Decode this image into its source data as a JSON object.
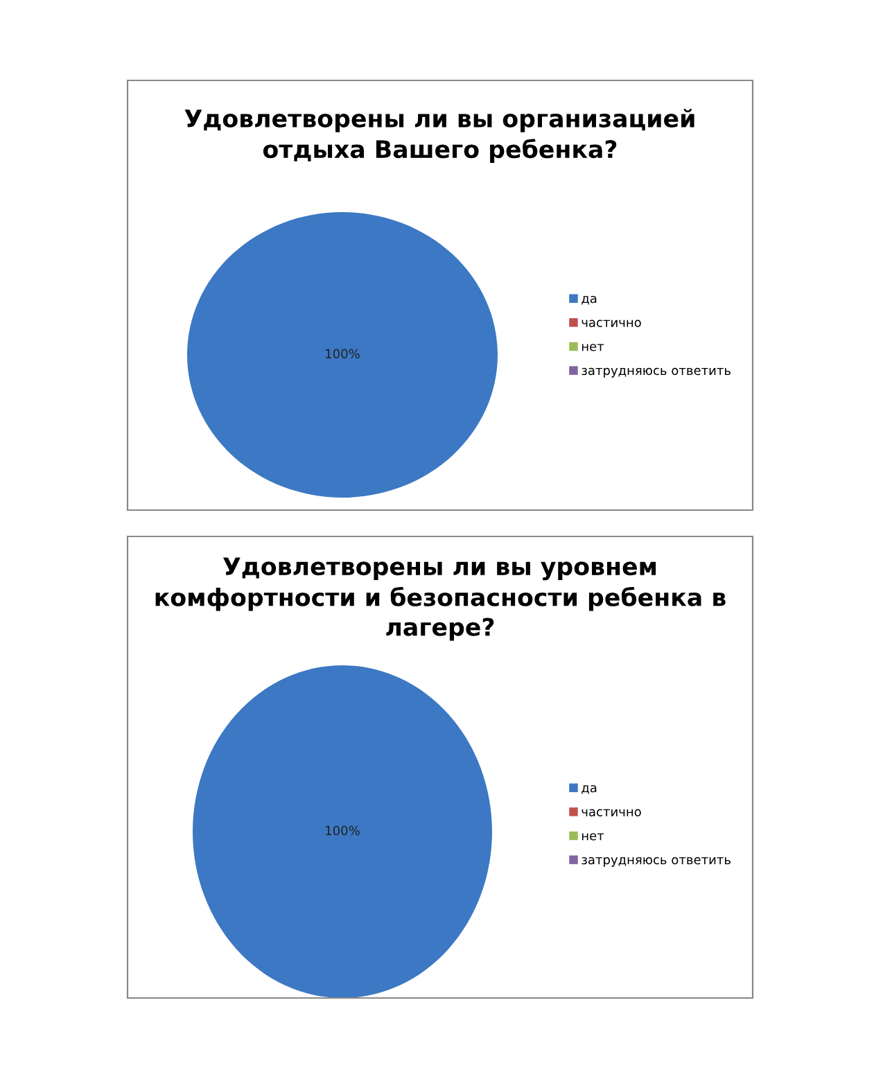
{
  "chart_data": [
    {
      "type": "pie",
      "title": "Удовлетворены ли вы организацией\nотдыха Вашего ребенка?",
      "categories": [
        "да",
        "частично",
        "нет",
        "затрудняюсь ответить"
      ],
      "values": [
        100,
        0,
        0,
        0
      ],
      "colors": [
        "#3c78c3",
        "#c0504d",
        "#9bbb59",
        "#8064a2"
      ],
      "value_labels": [
        "100%",
        null,
        null,
        null
      ],
      "legend": "right"
    },
    {
      "type": "pie",
      "title": "Удовлетворены ли вы уровнем\nкомфортности и безопасности ребенка в\nлагере?",
      "categories": [
        "да",
        "частично",
        "нет",
        "затрудняюсь ответить"
      ],
      "values": [
        100,
        0,
        0,
        0
      ],
      "colors": [
        "#3c78c3",
        "#c0504d",
        "#9bbb59",
        "#8064a2"
      ],
      "value_labels": [
        "100%",
        null,
        null,
        null
      ],
      "legend": "right"
    }
  ]
}
